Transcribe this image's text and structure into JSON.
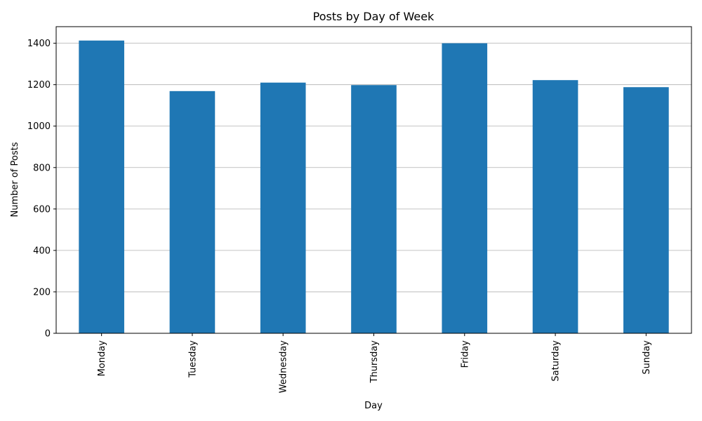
{
  "chart_data": {
    "type": "bar",
    "title": "Posts by Day of Week",
    "xlabel": "Day",
    "ylabel": "Number of Posts",
    "categories": [
      "Monday",
      "Tuesday",
      "Wednesday",
      "Thursday",
      "Friday",
      "Saturday",
      "Sunday"
    ],
    "values": [
      1413,
      1169,
      1210,
      1198,
      1400,
      1222,
      1188
    ],
    "ylim": [
      0,
      1480
    ],
    "yticks": [
      0,
      200,
      400,
      600,
      800,
      1000,
      1200,
      1400
    ],
    "grid": "y",
    "legend": "none",
    "bar_color": "#1f77b4"
  }
}
